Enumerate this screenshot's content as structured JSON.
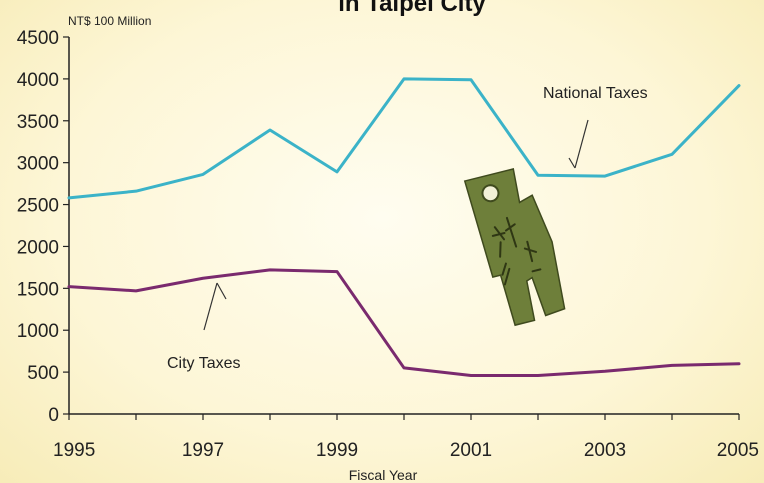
{
  "chart_data": {
    "type": "line",
    "title": "in Taipei City",
    "unit_label": "NT$ 100 Million",
    "xlabel": "Fiscal Year",
    "ylabel": "",
    "xlim": [
      1995,
      2005
    ],
    "ylim": [
      0,
      4500
    ],
    "x_ticks": [
      1995,
      1996,
      1997,
      1998,
      1999,
      2000,
      2001,
      2002,
      2003,
      2004,
      2005
    ],
    "x_tick_labels": [
      "1995",
      "1997",
      "1999",
      "2001",
      "2003",
      "2005"
    ],
    "x_tick_label_values": [
      1995,
      1997,
      1999,
      2001,
      2003,
      2005
    ],
    "y_ticks": [
      0,
      500,
      1000,
      1500,
      2000,
      2500,
      3000,
      3500,
      4000,
      4500
    ],
    "y_tick_labels": [
      "0",
      "500",
      "1000",
      "1500",
      "2000",
      "2500",
      "3000",
      "3500",
      "4000",
      "4500"
    ],
    "x": [
      1995,
      1996,
      1997,
      1998,
      1999,
      2000,
      2001,
      2002,
      2003,
      2004,
      2005
    ],
    "series": [
      {
        "name": "National Taxes",
        "color": "#3bb3c8",
        "values": [
          2580,
          2660,
          2860,
          3390,
          2890,
          4000,
          3990,
          2850,
          2840,
          3100,
          3920
        ]
      },
      {
        "name": "City Taxes",
        "color": "#7a2a6e",
        "values": [
          1520,
          1470,
          1620,
          1720,
          1700,
          550,
          460,
          460,
          510,
          580,
          600
        ]
      }
    ],
    "annotations": [
      {
        "text": "National Taxes",
        "series": "National Taxes"
      },
      {
        "text": "City Taxes",
        "series": "City Taxes"
      }
    ],
    "grid": false,
    "legend": "none",
    "decoration": "bronze-spade-coin-icon"
  }
}
